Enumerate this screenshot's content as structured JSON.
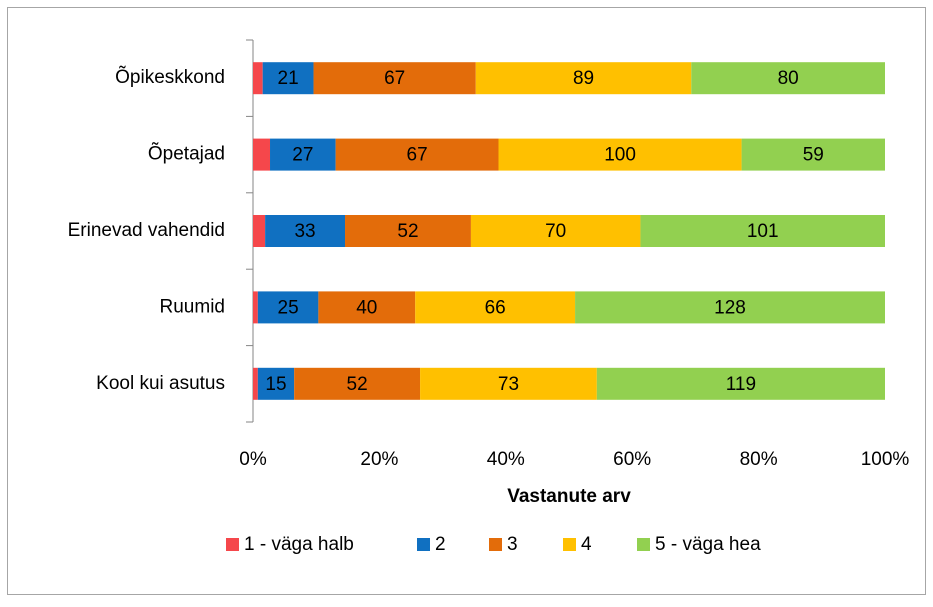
{
  "chart_data": {
    "type": "stacked_bar_100",
    "orientation": "horizontal",
    "x_label": "Vastanute arv",
    "categories": [
      "Õpikeskkond",
      "Õpetajad",
      "Erinevad vahendid",
      "Ruumid",
      "Kool kui asutus"
    ],
    "series": [
      {
        "name": "1 - väga halb",
        "color": "#f5474b",
        "values": [
          4,
          7,
          5,
          2,
          2
        ]
      },
      {
        "name": "2",
        "color": "#1070c1",
        "values": [
          21,
          27,
          33,
          25,
          15
        ]
      },
      {
        "name": "3",
        "color": "#e36c0a",
        "values": [
          67,
          67,
          52,
          40,
          52
        ]
      },
      {
        "name": "4",
        "color": "#ffc000",
        "values": [
          89,
          100,
          70,
          66,
          73
        ]
      },
      {
        "name": "5 - väga hea",
        "color": "#92d050",
        "values": [
          80,
          59,
          101,
          128,
          119
        ]
      }
    ],
    "xlim": [
      0,
      100
    ],
    "xticks": [
      {
        "value": 0,
        "label": "0%"
      },
      {
        "value": 20,
        "label": "20%"
      },
      {
        "value": 40,
        "label": "40%"
      },
      {
        "value": 60,
        "label": "60%"
      },
      {
        "value": 80,
        "label": "80%"
      },
      {
        "value": 100,
        "label": "100%"
      }
    ],
    "grid": false,
    "legend": "bottom"
  }
}
